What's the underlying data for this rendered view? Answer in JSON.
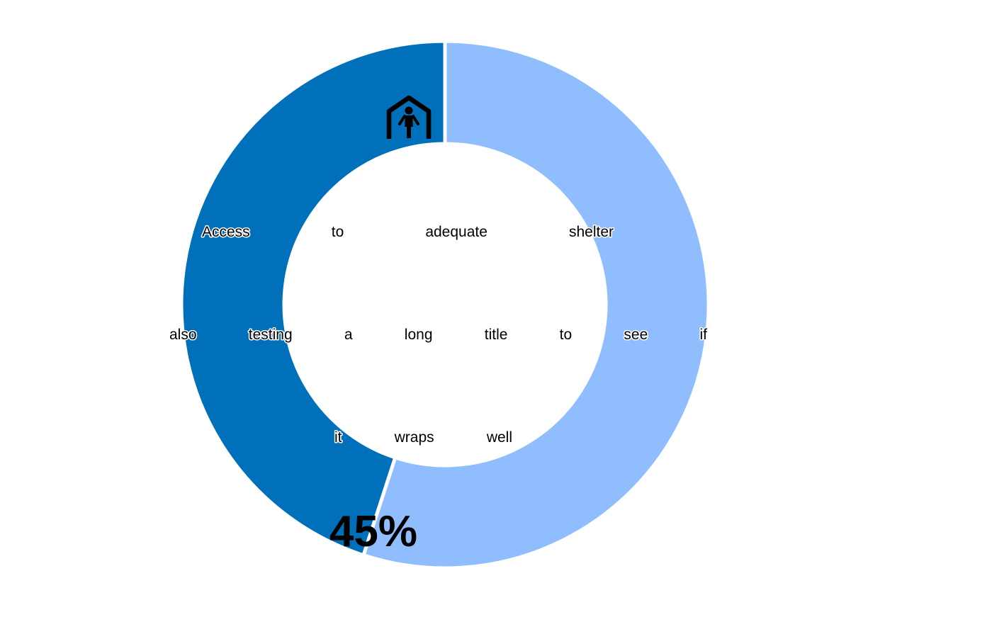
{
  "chart_data": {
    "type": "pie",
    "variant": "donut",
    "title": "Access to adequate shelter also testing a long title to see if it wraps well",
    "value_label": "45%",
    "icon": "shelter-person-icon",
    "slices": [
      {
        "value": 45,
        "color": "#0070ba"
      },
      {
        "value": 55,
        "color": "#8fbdfd"
      }
    ],
    "start_angle_deg": 0,
    "direction": "counterclockwise",
    "legend": "none",
    "colors": {
      "primary": "#0070ba",
      "remainder": "#8fbdfd",
      "separator": "#ffffff",
      "text": "#000000"
    }
  }
}
